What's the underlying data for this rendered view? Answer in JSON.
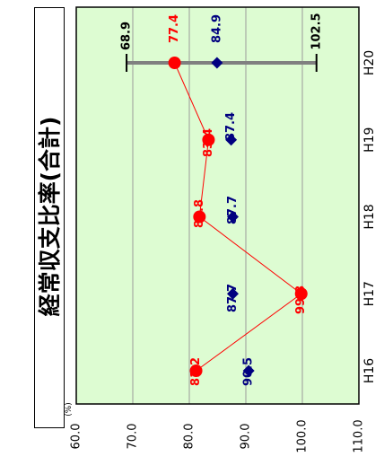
{
  "title": "経常収支比率(合計)",
  "unit_label": "(%)",
  "colors": {
    "plot_bg": "#ddfcd2",
    "series_a": "#ff0000",
    "series_b": "#000080",
    "range_bar": "#808080",
    "grid": "#9a9a9a"
  },
  "chart_data": {
    "type": "line",
    "orientation": "rotated",
    "categories": [
      "H16",
      "H17",
      "H18",
      "H19",
      "H20"
    ],
    "ylim": [
      60.0,
      110.0
    ],
    "y_ticks": [
      "60.0",
      "70.0",
      "80.0",
      "90.0",
      "100.0",
      "110.0"
    ],
    "y_tick_values": [
      60,
      70,
      80,
      90,
      100,
      110
    ],
    "grid": true,
    "series": [
      {
        "style": "line-circle",
        "color": "#ff0000",
        "values": [
          81.2,
          99.8,
          81.8,
          83.4,
          77.4
        ],
        "labels": [
          "81.2",
          "99.8",
          "81.8",
          "83.4",
          "77.4"
        ]
      },
      {
        "style": "diamond",
        "color": "#000080",
        "values": [
          90.5,
          87.7,
          87.7,
          87.4,
          84.9
        ],
        "labels": [
          "90.5",
          "87.7",
          "87.7",
          "87.4",
          "84.9"
        ]
      }
    ],
    "range": {
      "category": "H20",
      "min": 68.9,
      "max": 102.5,
      "min_label": "68.9",
      "max_label": "102.5"
    }
  }
}
